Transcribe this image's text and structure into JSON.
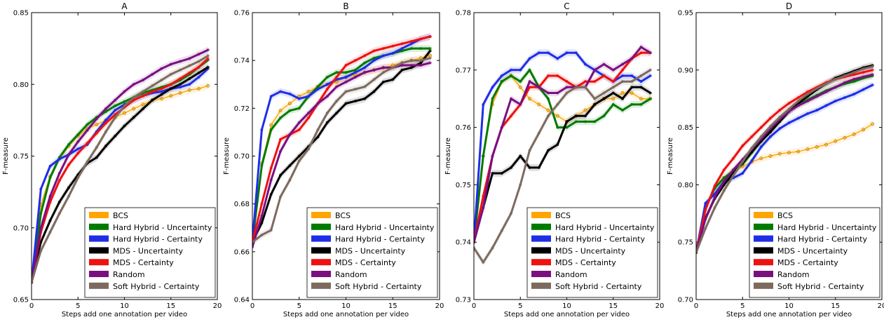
{
  "chart_data": [
    {
      "type": "line",
      "title": "A",
      "xlabel": "Steps add one annotation per video",
      "ylabel": "F-measure",
      "xlim": [
        0,
        20
      ],
      "ylim": [
        0.65,
        0.85
      ],
      "xticks": [
        0,
        5,
        10,
        15,
        20
      ],
      "yticks": [
        0.65,
        0.7,
        0.75,
        0.8,
        0.85
      ],
      "xtick_labels": [
        "0",
        "5",
        "10",
        "15",
        "20"
      ],
      "ytick_labels": [
        "0.65",
        "0.70",
        "0.75",
        "0.80",
        "0.85"
      ],
      "legend_position": "lower-right",
      "series": [
        {
          "name": "BCS",
          "color": "#FFA500",
          "thin": true,
          "values": [
            0.662,
            0.716,
            0.736,
            0.748,
            0.757,
            0.764,
            0.769,
            0.772,
            0.775,
            0.777,
            0.78,
            0.783,
            0.786,
            0.789,
            0.79,
            0.792,
            0.794,
            0.796,
            0.797,
            0.799
          ]
        },
        {
          "name": "Hard Hybrid - Uncertainty",
          "color": "#007A00",
          "values": [
            0.662,
            0.71,
            0.735,
            0.749,
            0.758,
            0.765,
            0.772,
            0.777,
            0.781,
            0.785,
            0.788,
            0.791,
            0.794,
            0.796,
            0.798,
            0.8,
            0.803,
            0.807,
            0.812,
            0.817
          ]
        },
        {
          "name": "Hard Hybrid - Certainty",
          "color": "#1F2EE6",
          "values": [
            0.662,
            0.727,
            0.743,
            0.748,
            0.751,
            0.755,
            0.758,
            0.767,
            0.775,
            0.782,
            0.786,
            0.789,
            0.792,
            0.794,
            0.795,
            0.797,
            0.798,
            0.8,
            0.805,
            0.811
          ]
        },
        {
          "name": "MDS - Uncertainty",
          "color": "#000000",
          "values": [
            0.662,
            0.69,
            0.705,
            0.718,
            0.728,
            0.737,
            0.745,
            0.749,
            0.757,
            0.764,
            0.771,
            0.777,
            0.783,
            0.789,
            0.793,
            0.797,
            0.8,
            0.804,
            0.808,
            0.812
          ]
        },
        {
          "name": "MDS - Certainty",
          "color": "#EE1111",
          "values": [
            0.662,
            0.697,
            0.718,
            0.733,
            0.744,
            0.752,
            0.759,
            0.766,
            0.773,
            0.779,
            0.784,
            0.789,
            0.792,
            0.795,
            0.797,
            0.8,
            0.804,
            0.808,
            0.812,
            0.818
          ]
        },
        {
          "name": "Random",
          "color": "#7A1080",
          "values": [
            0.662,
            0.7,
            0.722,
            0.738,
            0.751,
            0.76,
            0.768,
            0.776,
            0.783,
            0.789,
            0.795,
            0.8,
            0.803,
            0.807,
            0.811,
            0.814,
            0.816,
            0.818,
            0.821,
            0.824
          ]
        },
        {
          "name": "Soft Hybrid - Certainty",
          "color": "#7D6A5F",
          "values": [
            0.662,
            0.684,
            0.697,
            0.71,
            0.722,
            0.735,
            0.746,
            0.756,
            0.767,
            0.777,
            0.785,
            0.791,
            0.795,
            0.799,
            0.803,
            0.807,
            0.81,
            0.813,
            0.816,
            0.82
          ]
        }
      ]
    },
    {
      "type": "line",
      "title": "B",
      "xlabel": "Steps add one annotation per video",
      "ylabel": "F-measure",
      "xlim": [
        0,
        20
      ],
      "ylim": [
        0.64,
        0.76
      ],
      "xticks": [
        0,
        5,
        10,
        15,
        20
      ],
      "yticks": [
        0.64,
        0.66,
        0.68,
        0.7,
        0.72,
        0.74,
        0.76
      ],
      "xtick_labels": [
        "0",
        "5",
        "10",
        "15",
        "20"
      ],
      "ytick_labels": [
        "0.64",
        "0.66",
        "0.68",
        "0.70",
        "0.72",
        "0.74",
        "0.76"
      ],
      "legend_position": "lower-right",
      "series": [
        {
          "name": "BCS",
          "color": "#FFA500",
          "thin": true,
          "values": [
            0.664,
            0.697,
            0.713,
            0.719,
            0.722,
            0.725,
            0.727,
            0.729,
            0.73,
            0.731,
            0.733,
            0.734,
            0.735,
            0.736,
            0.737,
            0.738,
            0.739,
            0.74,
            0.741,
            0.742
          ]
        },
        {
          "name": "Hard Hybrid - Uncertainty",
          "color": "#007A00",
          "values": [
            0.664,
            0.696,
            0.711,
            0.716,
            0.719,
            0.72,
            0.725,
            0.729,
            0.733,
            0.735,
            0.735,
            0.736,
            0.739,
            0.741,
            0.742,
            0.743,
            0.744,
            0.745,
            0.745,
            0.745
          ]
        },
        {
          "name": "Hard Hybrid - Certainty",
          "color": "#1F2EE6",
          "values": [
            0.664,
            0.711,
            0.725,
            0.727,
            0.726,
            0.724,
            0.725,
            0.728,
            0.73,
            0.732,
            0.733,
            0.735,
            0.737,
            0.74,
            0.742,
            0.743,
            0.745,
            0.747,
            0.749,
            0.75
          ]
        },
        {
          "name": "MDS - Uncertainty",
          "color": "#000000",
          "values": [
            0.664,
            0.672,
            0.684,
            0.692,
            0.696,
            0.7,
            0.704,
            0.708,
            0.714,
            0.718,
            0.722,
            0.723,
            0.724,
            0.727,
            0.731,
            0.732,
            0.736,
            0.737,
            0.739,
            0.744
          ]
        },
        {
          "name": "MDS - Certainty",
          "color": "#EE1111",
          "values": [
            0.664,
            0.68,
            0.695,
            0.707,
            0.709,
            0.711,
            0.716,
            0.722,
            0.728,
            0.733,
            0.738,
            0.74,
            0.742,
            0.744,
            0.745,
            0.746,
            0.747,
            0.748,
            0.749,
            0.75
          ]
        },
        {
          "name": "Random",
          "color": "#7A1080",
          "values": [
            0.662,
            0.675,
            0.69,
            0.702,
            0.709,
            0.714,
            0.718,
            0.722,
            0.725,
            0.729,
            0.731,
            0.733,
            0.735,
            0.736,
            0.737,
            0.737,
            0.738,
            0.738,
            0.738,
            0.739
          ]
        },
        {
          "name": "Soft Hybrid - Certainty",
          "color": "#7D6A5F",
          "values": [
            0.664,
            0.667,
            0.669,
            0.683,
            0.69,
            0.698,
            0.703,
            0.711,
            0.718,
            0.723,
            0.727,
            0.728,
            0.729,
            0.732,
            0.735,
            0.737,
            0.739,
            0.74,
            0.74,
            0.741
          ]
        }
      ]
    },
    {
      "type": "line",
      "title": "C",
      "xlabel": "Steps add one annotation per video",
      "ylabel": "F-measure",
      "xlim": [
        0,
        20
      ],
      "ylim": [
        0.73,
        0.78
      ],
      "xticks": [
        0,
        5,
        10,
        15,
        20
      ],
      "yticks": [
        0.73,
        0.74,
        0.75,
        0.76,
        0.77,
        0.78
      ],
      "xtick_labels": [
        "0",
        "5",
        "10",
        "15",
        "20"
      ],
      "ytick_labels": [
        "0.73",
        "0.74",
        "0.75",
        "0.76",
        "0.77",
        "0.78"
      ],
      "legend_position": "lower-right",
      "series": [
        {
          "name": "BCS",
          "color": "#FFA500",
          "thin": true,
          "values": [
            0.74,
            0.755,
            0.764,
            0.768,
            0.769,
            0.767,
            0.765,
            0.764,
            0.763,
            0.762,
            0.761,
            0.762,
            0.763,
            0.764,
            0.765,
            0.765,
            0.766,
            0.766,
            0.765,
            0.765
          ]
        },
        {
          "name": "Hard Hybrid - Uncertainty",
          "color": "#007A00",
          "values": [
            0.74,
            0.755,
            0.765,
            0.768,
            0.769,
            0.768,
            0.77,
            0.767,
            0.765,
            0.76,
            0.76,
            0.761,
            0.761,
            0.761,
            0.762,
            0.764,
            0.763,
            0.764,
            0.764,
            0.765
          ]
        },
        {
          "name": "Hard Hybrid - Certainty",
          "color": "#1F2EE6",
          "values": [
            0.74,
            0.764,
            0.767,
            0.769,
            0.77,
            0.77,
            0.772,
            0.773,
            0.773,
            0.772,
            0.773,
            0.773,
            0.771,
            0.77,
            0.769,
            0.768,
            0.769,
            0.769,
            0.768,
            0.769
          ]
        },
        {
          "name": "MDS - Uncertainty",
          "color": "#000000",
          "values": [
            0.74,
            0.746,
            0.752,
            0.752,
            0.753,
            0.755,
            0.753,
            0.753,
            0.756,
            0.757,
            0.761,
            0.762,
            0.762,
            0.764,
            0.765,
            0.766,
            0.765,
            0.767,
            0.767,
            0.766
          ]
        },
        {
          "name": "MDS - Certainty",
          "color": "#EE1111",
          "values": [
            0.74,
            0.748,
            0.755,
            0.76,
            0.762,
            0.764,
            0.767,
            0.767,
            0.769,
            0.769,
            0.768,
            0.767,
            0.768,
            0.768,
            0.769,
            0.768,
            0.77,
            0.772,
            0.773,
            0.773
          ]
        },
        {
          "name": "Random",
          "color": "#7A1080",
          "values": [
            0.74,
            0.746,
            0.755,
            0.76,
            0.765,
            0.764,
            0.768,
            0.767,
            0.766,
            0.766,
            0.767,
            0.767,
            0.767,
            0.77,
            0.771,
            0.77,
            0.771,
            0.772,
            0.774,
            0.773
          ]
        },
        {
          "name": "Soft Hybrid - Certainty",
          "color": "#7D6A5F",
          "values": [
            0.739,
            0.7365,
            0.739,
            0.742,
            0.745,
            0.75,
            0.756,
            0.759,
            0.762,
            0.764,
            0.766,
            0.767,
            0.767,
            0.765,
            0.766,
            0.767,
            0.768,
            0.768,
            0.769,
            0.77
          ]
        }
      ]
    },
    {
      "type": "line",
      "title": "D",
      "xlabel": "Steps add one annotation per video",
      "ylabel": "F-measure",
      "xlim": [
        0,
        20
      ],
      "ylim": [
        0.7,
        0.95
      ],
      "xticks": [
        0,
        5,
        10,
        15,
        20
      ],
      "yticks": [
        0.7,
        0.75,
        0.8,
        0.85,
        0.9,
        0.95
      ],
      "xtick_labels": [
        "0",
        "5",
        "10",
        "15",
        "20"
      ],
      "ytick_labels": [
        "0.70",
        "0.75",
        "0.80",
        "0.85",
        "0.90",
        "0.95"
      ],
      "legend_position": "lower-right",
      "series": [
        {
          "name": "BCS",
          "color": "#FFA500",
          "thin": true,
          "values": [
            0.741,
            0.78,
            0.797,
            0.806,
            0.812,
            0.816,
            0.82,
            0.823,
            0.825,
            0.827,
            0.828,
            0.829,
            0.831,
            0.833,
            0.835,
            0.838,
            0.841,
            0.844,
            0.848,
            0.853
          ]
        },
        {
          "name": "Hard Hybrid - Uncertainty",
          "color": "#007A00",
          "values": [
            0.741,
            0.78,
            0.797,
            0.806,
            0.812,
            0.818,
            0.828,
            0.838,
            0.848,
            0.857,
            0.864,
            0.87,
            0.874,
            0.878,
            0.882,
            0.885,
            0.888,
            0.89,
            0.893,
            0.895
          ]
        },
        {
          "name": "Hard Hybrid - Certainty",
          "color": "#1F2EE6",
          "values": [
            0.741,
            0.784,
            0.792,
            0.803,
            0.806,
            0.81,
            0.821,
            0.833,
            0.842,
            0.849,
            0.854,
            0.858,
            0.862,
            0.865,
            0.869,
            0.873,
            0.876,
            0.879,
            0.883,
            0.887
          ]
        },
        {
          "name": "MDS - Uncertainty",
          "color": "#000000",
          "values": [
            0.741,
            0.771,
            0.788,
            0.8,
            0.81,
            0.819,
            0.829,
            0.838,
            0.846,
            0.855,
            0.864,
            0.871,
            0.877,
            0.883,
            0.888,
            0.893,
            0.896,
            0.899,
            0.902,
            0.904
          ]
        },
        {
          "name": "MDS - Certainty",
          "color": "#EE1111",
          "values": [
            0.741,
            0.778,
            0.799,
            0.813,
            0.823,
            0.834,
            0.842,
            0.85,
            0.858,
            0.865,
            0.871,
            0.876,
            0.881,
            0.885,
            0.889,
            0.892,
            0.894,
            0.896,
            0.898,
            0.9
          ]
        },
        {
          "name": "Random",
          "color": "#7A1080",
          "values": [
            0.741,
            0.77,
            0.789,
            0.803,
            0.813,
            0.822,
            0.831,
            0.84,
            0.849,
            0.857,
            0.864,
            0.869,
            0.873,
            0.877,
            0.881,
            0.885,
            0.889,
            0.892,
            0.894,
            0.896
          ]
        },
        {
          "name": "Soft Hybrid - Certainty",
          "color": "#7D6A5F",
          "values": [
            0.741,
            0.762,
            0.78,
            0.795,
            0.808,
            0.82,
            0.832,
            0.842,
            0.851,
            0.859,
            0.866,
            0.873,
            0.879,
            0.884,
            0.888,
            0.892,
            0.895,
            0.898,
            0.901,
            0.903
          ]
        }
      ]
    }
  ]
}
